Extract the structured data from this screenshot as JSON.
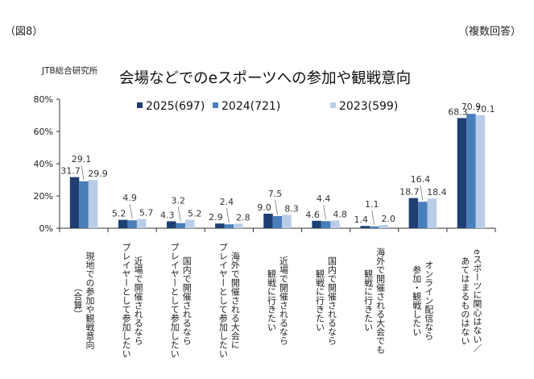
{
  "figure_label": "（図8）",
  "note": "（複数回答）",
  "source": "JTB総合研究所",
  "chart_data": {
    "type": "bar",
    "title": "会場などでのeスポーツへの参加や観戦意向",
    "categories": [
      "現地での参加や観戦意向\n（合算）",
      "近場で開催されるなら\nプレイヤーとして参加したい",
      "国内で開催されるなら\nプレイヤーとして参加したい",
      "海外で開催される大会に\nプレイヤーとして参加したい",
      "近場で開催されるなら\n観戦に行きたい",
      "国内で開催されるなら\n観戦に行きたい",
      "海外で開催される大会でも\n観戦に行きたい",
      "オンライン配信なら\n参加・観戦したい",
      "eスポーツに関心はない／\nあてはまるものはない"
    ],
    "series": [
      {
        "name": "2025(697)",
        "color": "#1f3f73",
        "values": [
          31.7,
          5.2,
          4.3,
          2.9,
          9.0,
          4.6,
          1.4,
          18.7,
          68.3
        ]
      },
      {
        "name": "2024(721)",
        "color": "#4a7ebb",
        "values": [
          29.1,
          4.9,
          3.2,
          2.4,
          7.5,
          4.4,
          1.1,
          16.4,
          70.9
        ]
      },
      {
        "name": "2023(599)",
        "color": "#b9cde8",
        "values": [
          29.9,
          5.7,
          5.2,
          2.8,
          8.3,
          4.8,
          2.0,
          18.4,
          70.1
        ]
      }
    ],
    "yticks": [
      "0%",
      "20%",
      "40%",
      "60%",
      "80%"
    ],
    "ylim": [
      0,
      80
    ],
    "legend": "top",
    "grid": false
  }
}
